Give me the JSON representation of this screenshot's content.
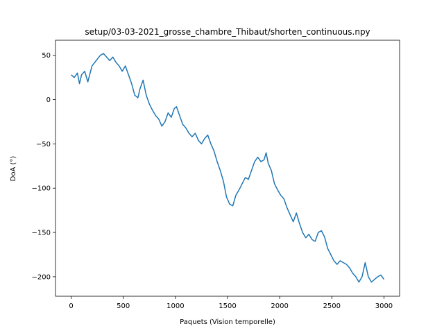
{
  "chart_data": {
    "type": "line",
    "title": "setup/03-03-2021_grosse_chambre_Thibaut/shorten_continuous.npy",
    "xlabel": "Paquets (Vision temporelle)",
    "ylabel": "DoA (°)",
    "xlim": [
      -150,
      3150
    ],
    "ylim": [
      -222,
      67
    ],
    "xticks": [
      0,
      500,
      1000,
      1500,
      2000,
      2500,
      3000
    ],
    "xtick_labels": [
      "0",
      "500",
      "1000",
      "1500",
      "2000",
      "2500",
      "3000"
    ],
    "yticks": [
      50,
      0,
      -50,
      -100,
      -150,
      -200
    ],
    "ytick_labels": [
      "50",
      "0",
      "−50",
      "−100",
      "−150",
      "−200"
    ],
    "grid": false,
    "legend": "none",
    "series": [
      {
        "color": "#1f77b4",
        "x": [
          0,
          30,
          60,
          80,
          100,
          130,
          160,
          200,
          240,
          280,
          310,
          340,
          370,
          400,
          430,
          460,
          490,
          520,
          550,
          580,
          610,
          640,
          660,
          690,
          720,
          750,
          780,
          810,
          840,
          870,
          900,
          930,
          960,
          990,
          1010,
          1040,
          1070,
          1100,
          1130,
          1160,
          1190,
          1220,
          1250,
          1280,
          1310,
          1340,
          1370,
          1400,
          1430,
          1460,
          1490,
          1520,
          1550,
          1580,
          1610,
          1640,
          1670,
          1700,
          1730,
          1760,
          1790,
          1820,
          1850,
          1870,
          1890,
          1920,
          1950,
          1980,
          2010,
          2040,
          2070,
          2100,
          2130,
          2160,
          2190,
          2220,
          2250,
          2280,
          2310,
          2340,
          2370,
          2400,
          2430,
          2460,
          2490,
          2520,
          2550,
          2580,
          2610,
          2640,
          2670,
          2700,
          2730,
          2760,
          2790,
          2820,
          2850,
          2880,
          2910,
          2940,
          2970,
          3000
        ],
        "y": [
          28,
          25,
          30,
          18,
          28,
          32,
          20,
          38,
          44,
          50,
          52,
          48,
          44,
          48,
          42,
          38,
          32,
          38,
          28,
          18,
          5,
          2,
          12,
          22,
          5,
          -5,
          -12,
          -18,
          -22,
          -30,
          -25,
          -15,
          -20,
          -10,
          -8,
          -18,
          -28,
          -32,
          -38,
          -42,
          -38,
          -46,
          -50,
          -44,
          -40,
          -50,
          -58,
          -70,
          -80,
          -92,
          -110,
          -118,
          -120,
          -108,
          -102,
          -95,
          -88,
          -90,
          -80,
          -70,
          -65,
          -70,
          -68,
          -60,
          -72,
          -80,
          -95,
          -102,
          -108,
          -112,
          -122,
          -130,
          -138,
          -128,
          -140,
          -150,
          -156,
          -152,
          -158,
          -160,
          -150,
          -148,
          -155,
          -168,
          -175,
          -182,
          -186,
          -182,
          -184,
          -186,
          -190,
          -196,
          -200,
          -206,
          -200,
          -184,
          -200,
          -206,
          -203,
          -200,
          -198,
          -203
        ]
      }
    ]
  }
}
